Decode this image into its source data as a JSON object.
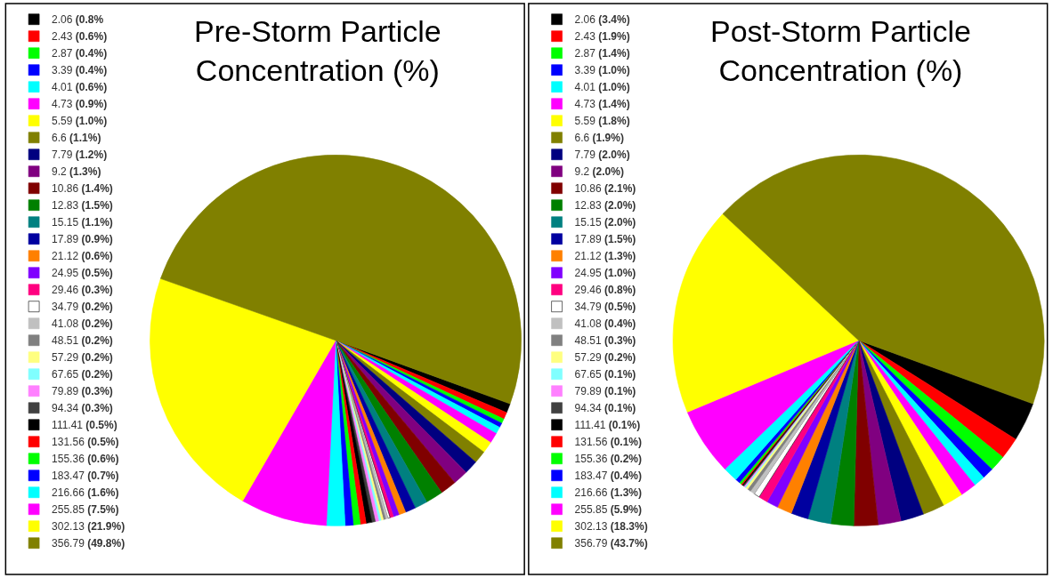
{
  "chart_data": [
    {
      "type": "pie",
      "title": "Pre-Storm Particle Concentration (%)",
      "legend": "left",
      "categories": [
        "2.06 (0.8%",
        "2.43 (0.6%)",
        "2.87 (0.4%)",
        "3.39 (0.4%)",
        "4.01 (0.6%)",
        "4.73 (0.9%)",
        "5.59 (1.0%)",
        "6.6 (1.1%)",
        "7.79 (1.2%)",
        "9.2 (1.3%)",
        "10.86 (1.4%)",
        "12.83 (1.5%)",
        "15.15 (1.1%)",
        "17.89 (0.9%)",
        "21.12 (0.6%)",
        "24.95 (0.5%)",
        "29.46 (0.3%)",
        "34.79 (0.2%)",
        "41.08 (0.2%)",
        "48.51 (0.2%)",
        "57.29 (0.2%)",
        "67.65 (0.2%)",
        "79.89 (0.3%)",
        "94.34 (0.3%)",
        "111.41 (0.5%)",
        "131.56 (0.5%)",
        "155.36 (0.6%)",
        "183.47 (0.7%)",
        "216.66 (1.6%)",
        "255.85 (7.5%)",
        "302.13 (21.9%)",
        "356.79 (49.8%)"
      ],
      "values": [
        0.8,
        0.6,
        0.4,
        0.4,
        0.6,
        0.9,
        1.0,
        1.1,
        1.2,
        1.3,
        1.4,
        1.5,
        1.1,
        0.9,
        0.6,
        0.5,
        0.3,
        0.2,
        0.2,
        0.2,
        0.2,
        0.2,
        0.3,
        0.3,
        0.5,
        0.5,
        0.6,
        0.7,
        1.6,
        7.5,
        21.9,
        49.8
      ],
      "colors": [
        "#000000",
        "#ff0000",
        "#00ff00",
        "#0000ff",
        "#00ffff",
        "#ff00ff",
        "#ffff00",
        "#808000",
        "#000080",
        "#800080",
        "#800000",
        "#008000",
        "#008080",
        "#0000a0",
        "#ff8000",
        "#8000ff",
        "#ff0080",
        "#ffffff",
        "#c0c0c0",
        "#808080",
        "#ffff80",
        "#80ffff",
        "#ff80ff",
        "#404040",
        "#000000",
        "#ff0000",
        "#00ff00",
        "#0000ff",
        "#00ffff",
        "#ff00ff",
        "#ffff00",
        "#808000"
      ]
    },
    {
      "type": "pie",
      "title": "Post-Storm Particle Concentration (%)",
      "legend": "left",
      "categories": [
        "2.06 (3.4%)",
        "2.43 (1.9%)",
        "2.87 (1.4%)",
        "3.39 (1.0%)",
        "4.01 (1.0%)",
        "4.73 (1.4%)",
        "5.59 (1.8%)",
        "6.6 (1.9%)",
        "7.79 (2.0%)",
        "9.2 (2.0%)",
        "10.86 (2.1%)",
        "12.83 (2.0%)",
        "15.15 (2.0%)",
        "17.89 (1.5%)",
        "21.12 (1.3%)",
        "24.95 (1.0%)",
        "29.46 (0.8%)",
        "34.79 (0.5%)",
        "41.08 (0.4%)",
        "48.51 (0.3%)",
        "57.29 (0.2%)",
        "67.65 (0.1%)",
        "79.89 (0.1%)",
        "94.34 (0.1%)",
        "111.41 (0.1%)",
        "131.56 (0.1%)",
        "155.36 (0.2%)",
        "183.47 (0.4%)",
        "216.66 (1.3%)",
        "255.85 (5.9%)",
        "302.13 (18.3%)",
        "356.79 (43.7%)"
      ],
      "values": [
        3.4,
        1.9,
        1.4,
        1.0,
        1.0,
        1.4,
        1.8,
        1.9,
        2.0,
        2.0,
        2.1,
        2.0,
        2.0,
        1.5,
        1.3,
        1.0,
        0.8,
        0.5,
        0.4,
        0.3,
        0.2,
        0.1,
        0.1,
        0.1,
        0.1,
        0.1,
        0.2,
        0.4,
        1.3,
        5.9,
        18.3,
        43.7
      ],
      "colors": [
        "#000000",
        "#ff0000",
        "#00ff00",
        "#0000ff",
        "#00ffff",
        "#ff00ff",
        "#ffff00",
        "#808000",
        "#000080",
        "#800080",
        "#800000",
        "#008000",
        "#008080",
        "#0000a0",
        "#ff8000",
        "#8000ff",
        "#ff0080",
        "#ffffff",
        "#c0c0c0",
        "#808080",
        "#ffff80",
        "#80ffff",
        "#ff80ff",
        "#404040",
        "#000000",
        "#ff0000",
        "#00ff00",
        "#0000ff",
        "#00ffff",
        "#ff00ff",
        "#ffff00",
        "#808000"
      ]
    }
  ]
}
